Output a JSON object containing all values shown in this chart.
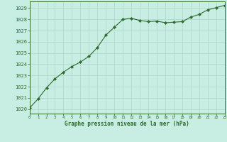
{
  "x": [
    0,
    1,
    2,
    3,
    4,
    5,
    6,
    7,
    8,
    9,
    10,
    11,
    12,
    13,
    14,
    15,
    16,
    17,
    18,
    19,
    20,
    21,
    22,
    23
  ],
  "y": [
    1020.1,
    1020.9,
    1021.9,
    1022.7,
    1023.3,
    1023.8,
    1024.2,
    1024.7,
    1025.5,
    1026.6,
    1027.3,
    1028.0,
    1028.1,
    1027.9,
    1027.8,
    1027.85,
    1027.7,
    1027.75,
    1027.8,
    1028.2,
    1028.45,
    1028.85,
    1029.05,
    1029.25
  ],
  "ylim": [
    1019.6,
    1029.6
  ],
  "xlim": [
    0,
    23
  ],
  "yticks": [
    1020,
    1021,
    1022,
    1023,
    1024,
    1025,
    1026,
    1027,
    1028,
    1029
  ],
  "xticks": [
    0,
    1,
    2,
    3,
    4,
    5,
    6,
    7,
    8,
    9,
    10,
    11,
    12,
    13,
    14,
    15,
    16,
    17,
    18,
    19,
    20,
    21,
    22,
    23
  ],
  "line_color": "#2d6a2d",
  "marker_color": "#2d6a2d",
  "bg_color": "#c8eee4",
  "grid_color": "#b0d8cc",
  "xlabel": "Graphe pression niveau de la mer (hPa)",
  "xlabel_color": "#2d6a2d",
  "tick_color": "#2d6a2d",
  "border_color": "#2d6a2d"
}
